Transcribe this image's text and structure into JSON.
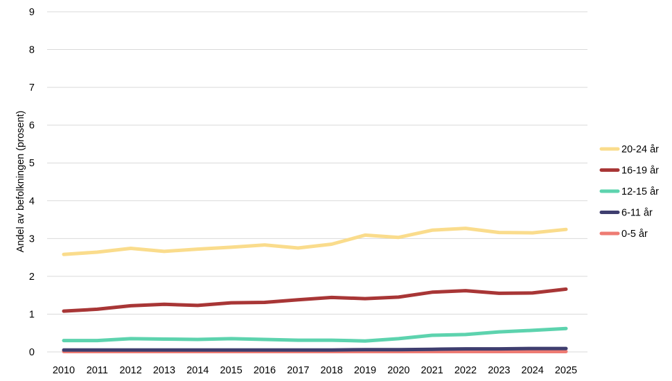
{
  "chart_data": {
    "type": "line",
    "title": "",
    "xlabel": "",
    "ylabel": "Andel av befolkningen (prosent)",
    "ylim": [
      0,
      9
    ],
    "yticks": [
      0,
      1,
      2,
      3,
      4,
      5,
      6,
      7,
      8,
      9
    ],
    "grid": true,
    "legend_position": "right",
    "categories": [
      "2010",
      "2011",
      "2012",
      "2013",
      "2014",
      "2015",
      "2016",
      "2017",
      "2018",
      "2019",
      "2020",
      "2021",
      "2022",
      "2023",
      "2024",
      "2025"
    ],
    "series": [
      {
        "name": "20-24 år",
        "color": "#FADC8C",
        "values": [
          2.58,
          2.64,
          2.74,
          2.66,
          2.72,
          2.77,
          2.83,
          2.75,
          2.85,
          3.09,
          3.03,
          3.22,
          3.27,
          3.16,
          3.15,
          3.24
        ]
      },
      {
        "name": "16-19 år",
        "color": "#A83636",
        "values": [
          1.08,
          1.13,
          1.22,
          1.26,
          1.23,
          1.3,
          1.31,
          1.38,
          1.44,
          1.41,
          1.45,
          1.58,
          1.62,
          1.55,
          1.56,
          1.66
        ]
      },
      {
        "name": "12-15 år",
        "color": "#5DD3AE",
        "values": [
          0.3,
          0.3,
          0.35,
          0.34,
          0.33,
          0.35,
          0.33,
          0.31,
          0.31,
          0.29,
          0.35,
          0.44,
          0.46,
          0.53,
          0.57,
          0.62
        ]
      },
      {
        "name": "6-11 år",
        "color": "#3F3E6F",
        "values": [
          0.05,
          0.05,
          0.05,
          0.05,
          0.05,
          0.05,
          0.05,
          0.05,
          0.05,
          0.06,
          0.06,
          0.07,
          0.08,
          0.08,
          0.09,
          0.09
        ]
      },
      {
        "name": "0-5 år",
        "color": "#EE7B73",
        "values": [
          0.01,
          0.01,
          0.01,
          0.01,
          0.01,
          0.01,
          0.01,
          0.01,
          0.01,
          0.01,
          0.01,
          0.01,
          0.01,
          0.01,
          0.01,
          0.01
        ]
      }
    ]
  }
}
